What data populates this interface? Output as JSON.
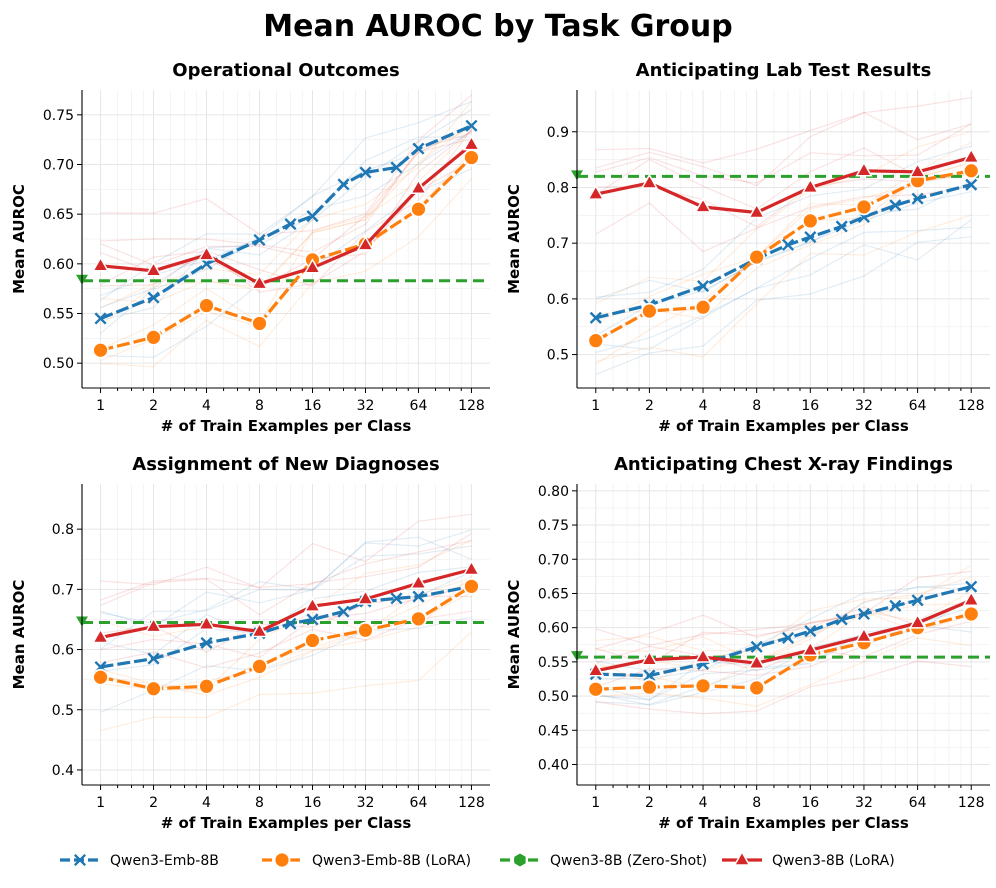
{
  "figure": {
    "title": "Mean AUROC by Task Group"
  },
  "colors": {
    "Qwen3-Emb-8B": "#1f77b4",
    "Qwen3-Emb-8B (LoRA)": "#ff7f0e",
    "Qwen3-8B (Zero-Shot)": "#2ca02c",
    "Qwen3-8B (LoRA)": "#d62728"
  },
  "legend": [
    {
      "label": "Qwen3-Emb-8B",
      "marker": "x",
      "color": "#1f77b4"
    },
    {
      "label": "Qwen3-Emb-8B (LoRA)",
      "marker": "circle",
      "color": "#ff7f0e"
    },
    {
      "label": "Qwen3-8B (Zero-Shot)",
      "marker": "hexagon",
      "color": "#2ca02c"
    },
    {
      "label": "Qwen3-8B (LoRA)",
      "marker": "triangle",
      "color": "#d62728"
    }
  ],
  "chart_data": [
    {
      "type": "line",
      "title": "Operational Outcomes",
      "xlabel": "# of Train Examples per Class",
      "ylabel": "Mean AUROC",
      "x": [
        1,
        2,
        4,
        8,
        16,
        32,
        64,
        128
      ],
      "x_scale": "log2",
      "ylim": [
        0.475,
        0.775
      ],
      "yticks": [
        0.5,
        0.55,
        0.6,
        0.65,
        0.7,
        0.75
      ],
      "ytick_labels": [
        "0.50",
        "0.55",
        "0.60",
        "0.65",
        "0.70",
        "0.75"
      ],
      "grid": true,
      "series": [
        {
          "name": "Qwen3-Emb-8B",
          "values": [
            0.545,
            0.566,
            0.6,
            0.624,
            0.64,
            0.648,
            0.68,
            0.692,
            0.697,
            0.716,
            0.739
          ],
          "x": [
            1,
            2,
            4,
            8,
            12,
            16,
            24,
            32,
            48,
            64,
            128
          ],
          "marker": "x"
        },
        {
          "name": "Qwen3-Emb-8B (LoRA)",
          "values": [
            0.513,
            0.526,
            0.558,
            0.54,
            0.604,
            0.62,
            0.655,
            0.707
          ],
          "marker": "circle"
        },
        {
          "name": "Qwen3-8B (LoRA)",
          "values": [
            0.598,
            0.593,
            0.609,
            0.58,
            0.596,
            0.619,
            0.676,
            0.72
          ],
          "marker": "triangle"
        }
      ],
      "zero_shot": 0.583
    },
    {
      "type": "line",
      "title": "Anticipating Lab Test Results",
      "xlabel": "# of Train Examples per Class",
      "ylabel": "Mean AUROC",
      "x": [
        1,
        2,
        4,
        8,
        16,
        32,
        64,
        128
      ],
      "x_scale": "log2",
      "ylim": [
        0.44,
        0.975
      ],
      "yticks": [
        0.5,
        0.6,
        0.7,
        0.8,
        0.9
      ],
      "ytick_labels": [
        "0.5",
        "0.6",
        "0.7",
        "0.8",
        "0.9"
      ],
      "grid": true,
      "series": [
        {
          "name": "Qwen3-Emb-8B",
          "values": [
            0.566,
            0.589,
            0.623,
            0.672,
            0.697,
            0.711,
            0.73,
            0.747,
            0.768,
            0.78,
            0.805
          ],
          "x": [
            1,
            2,
            4,
            8,
            12,
            16,
            24,
            32,
            48,
            64,
            128
          ],
          "marker": "x"
        },
        {
          "name": "Qwen3-Emb-8B (LoRA)",
          "values": [
            0.525,
            0.578,
            0.585,
            0.675,
            0.74,
            0.765,
            0.812,
            0.83
          ],
          "marker": "circle"
        },
        {
          "name": "Qwen3-8B (LoRA)",
          "values": [
            0.788,
            0.808,
            0.765,
            0.755,
            0.8,
            0.83,
            0.828,
            0.854
          ],
          "marker": "triangle"
        }
      ],
      "zero_shot": 0.82
    },
    {
      "type": "line",
      "title": "Assignment of New Diagnoses",
      "xlabel": "# of Train Examples per Class",
      "ylabel": "Mean AUROC",
      "x": [
        1,
        2,
        4,
        8,
        16,
        32,
        64,
        128
      ],
      "x_scale": "log2",
      "ylim": [
        0.375,
        0.875
      ],
      "yticks": [
        0.4,
        0.5,
        0.6,
        0.7,
        0.8
      ],
      "ytick_labels": [
        "0.4",
        "0.5",
        "0.6",
        "0.7",
        "0.8"
      ],
      "grid": true,
      "series": [
        {
          "name": "Qwen3-Emb-8B",
          "values": [
            0.571,
            0.585,
            0.611,
            0.627,
            0.643,
            0.65,
            0.663,
            0.68,
            0.685,
            0.688,
            0.705
          ],
          "x": [
            1,
            2,
            4,
            8,
            12,
            16,
            24,
            32,
            48,
            64,
            128
          ],
          "marker": "x"
        },
        {
          "name": "Qwen3-Emb-8B (LoRA)",
          "values": [
            0.554,
            0.535,
            0.539,
            0.572,
            0.615,
            0.632,
            0.651,
            0.705
          ],
          "marker": "circle"
        },
        {
          "name": "Qwen3-8B (LoRA)",
          "values": [
            0.62,
            0.638,
            0.642,
            0.63,
            0.672,
            0.684,
            0.71,
            0.733
          ],
          "marker": "triangle"
        }
      ],
      "zero_shot": 0.645
    },
    {
      "type": "line",
      "title": "Anticipating Chest X-ray Findings",
      "xlabel": "# of Train Examples per Class",
      "ylabel": "Mean AUROC",
      "x": [
        1,
        2,
        4,
        8,
        16,
        32,
        64,
        128
      ],
      "x_scale": "log2",
      "ylim": [
        0.37,
        0.81
      ],
      "yticks": [
        0.4,
        0.45,
        0.5,
        0.55,
        0.6,
        0.65,
        0.7,
        0.75,
        0.8
      ],
      "ytick_labels": [
        "0.40",
        "0.45",
        "0.50",
        "0.55",
        "0.60",
        "0.65",
        "0.70",
        "0.75",
        "0.80"
      ],
      "grid": true,
      "series": [
        {
          "name": "Qwen3-Emb-8B",
          "values": [
            0.532,
            0.53,
            0.547,
            0.572,
            0.585,
            0.595,
            0.612,
            0.62,
            0.632,
            0.64,
            0.66
          ],
          "x": [
            1,
            2,
            4,
            8,
            12,
            16,
            24,
            32,
            48,
            64,
            128
          ],
          "marker": "x"
        },
        {
          "name": "Qwen3-Emb-8B (LoRA)",
          "values": [
            0.51,
            0.513,
            0.515,
            0.512,
            0.56,
            0.578,
            0.6,
            0.62
          ],
          "marker": "circle"
        },
        {
          "name": "Qwen3-8B (LoRA)",
          "values": [
            0.537,
            0.553,
            0.557,
            0.548,
            0.567,
            0.587,
            0.607,
            0.64
          ],
          "marker": "triangle"
        }
      ],
      "zero_shot": 0.557
    }
  ]
}
